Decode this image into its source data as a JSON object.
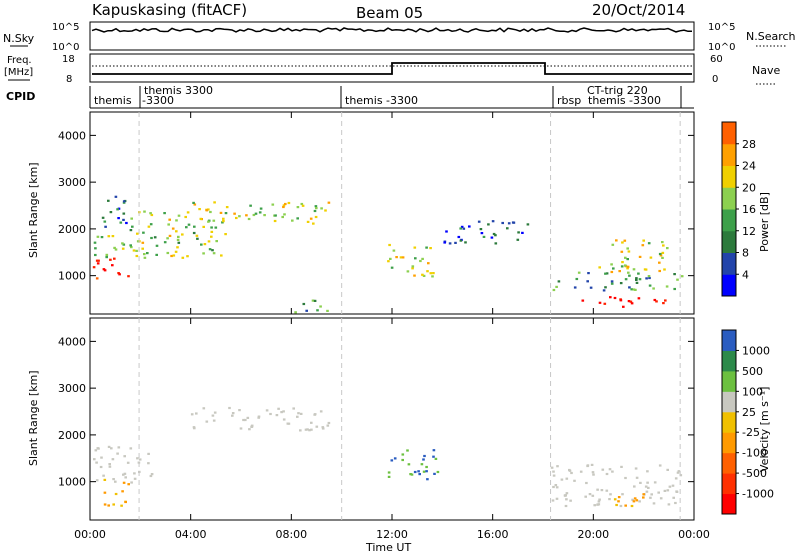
{
  "header": {
    "station": "Kapuskasing (fitACF)",
    "beam": "Beam 05",
    "date": "20/Oct/2014"
  },
  "summary": {
    "nsky_label": "N.Sky",
    "nsky_ticks": [
      "10^5",
      "10^0"
    ],
    "nsearch_label": "N.Search",
    "nsearch_ticks": [
      "10^5",
      "10^0"
    ],
    "freq_label_1": "Freq.",
    "freq_label_2": "[MHz]",
    "freq_ticks": [
      "18",
      "8"
    ],
    "nave_label": "Nave",
    "nave_ticks": [
      "60",
      "0"
    ],
    "cpid_label": "CPID",
    "cpid_entries": [
      "themis",
      "themis 3300",
      "-3300",
      "themis -3300",
      "rbsp",
      "CT-trig 220",
      "themis -3300"
    ]
  },
  "axes": {
    "ylabel": "Slant Range [km]",
    "xlabel": "Time UT",
    "y_ticks": [
      "1000",
      "2000",
      "3000",
      "4000"
    ],
    "x_ticks": [
      "00:00",
      "04:00",
      "08:00",
      "12:00",
      "16:00",
      "20:00",
      "00:00"
    ]
  },
  "colorbars": {
    "power": {
      "label": "Power [dB]",
      "ticks": [
        "4",
        "8",
        "12",
        "16",
        "20",
        "24",
        "28"
      ],
      "colors": [
        "#0000ff",
        "#2244aa",
        "#2c7a3c",
        "#3da04a",
        "#8cd050",
        "#f0d000",
        "#ffa000",
        "#ff6000",
        "#ff2000",
        "#ff0000"
      ]
    },
    "velocity": {
      "label": "Velocity [m s⁻¹]",
      "ticks": [
        "1000",
        "500",
        "100",
        "25",
        "-25",
        "-100",
        "-500",
        "-1000"
      ],
      "colors": [
        "#1a3aa8",
        "#2a5cc0",
        "#2c8a4a",
        "#6cc040",
        "#c8c8c0",
        "#f0c000",
        "#ff9a00",
        "#ff6000",
        "#ff3000",
        "#ff0000"
      ]
    }
  },
  "chart_data": [
    {
      "type": "heatmap",
      "name": "Power",
      "x_range": [
        "00:00",
        "24:00"
      ],
      "ylim": [
        180,
        4500
      ],
      "units": "dB",
      "regions": [
        {
          "t": [
            0.1,
            1.5
          ],
          "r": [
            900,
            1400
          ],
          "value": 26
        },
        {
          "t": [
            0.1,
            2.0
          ],
          "r": [
            1400,
            1900
          ],
          "value": 10
        },
        {
          "t": [
            0.4,
            1.5
          ],
          "r": [
            2000,
            2800
          ],
          "value": 5
        },
        {
          "t": [
            1.5,
            5.5
          ],
          "r": [
            1400,
            2400
          ],
          "value": 12
        },
        {
          "t": [
            4.0,
            9.5
          ],
          "r": [
            2100,
            2600
          ],
          "value": 13
        },
        {
          "t": [
            8.0,
            9.5
          ],
          "r": [
            200,
            500
          ],
          "value": 8
        },
        {
          "t": [
            11.8,
            13.8
          ],
          "r": [
            1000,
            1700
          ],
          "value": 14
        },
        {
          "t": [
            14.0,
            17.5
          ],
          "r": [
            1700,
            2200
          ],
          "value": 4
        },
        {
          "t": [
            18.3,
            23.5
          ],
          "r": [
            700,
            1100
          ],
          "value": 8
        },
        {
          "t": [
            19.5,
            23.0
          ],
          "r": [
            350,
            600
          ],
          "value": 28
        },
        {
          "t": [
            20.0,
            23.0
          ],
          "r": [
            1100,
            1800
          ],
          "value": 14
        }
      ]
    },
    {
      "type": "heatmap",
      "name": "Velocity",
      "x_range": [
        "00:00",
        "24:00"
      ],
      "ylim": [
        180,
        4500
      ],
      "units": "m s^-1",
      "regions": [
        {
          "t": [
            0.1,
            2.5
          ],
          "r": [
            1000,
            1800
          ],
          "value": 0
        },
        {
          "t": [
            0.5,
            1.6
          ],
          "r": [
            500,
            1100
          ],
          "value": -100
        },
        {
          "t": [
            4.0,
            9.5
          ],
          "r": [
            2100,
            2600
          ],
          "value": 0
        },
        {
          "t": [
            11.8,
            13.8
          ],
          "r": [
            1000,
            1700
          ],
          "value": 100
        },
        {
          "t": [
            18.3,
            23.5
          ],
          "r": [
            500,
            1400
          ],
          "value": 0
        },
        {
          "t": [
            20.5,
            22.5
          ],
          "r": [
            500,
            800
          ],
          "value": -100
        }
      ]
    }
  ]
}
